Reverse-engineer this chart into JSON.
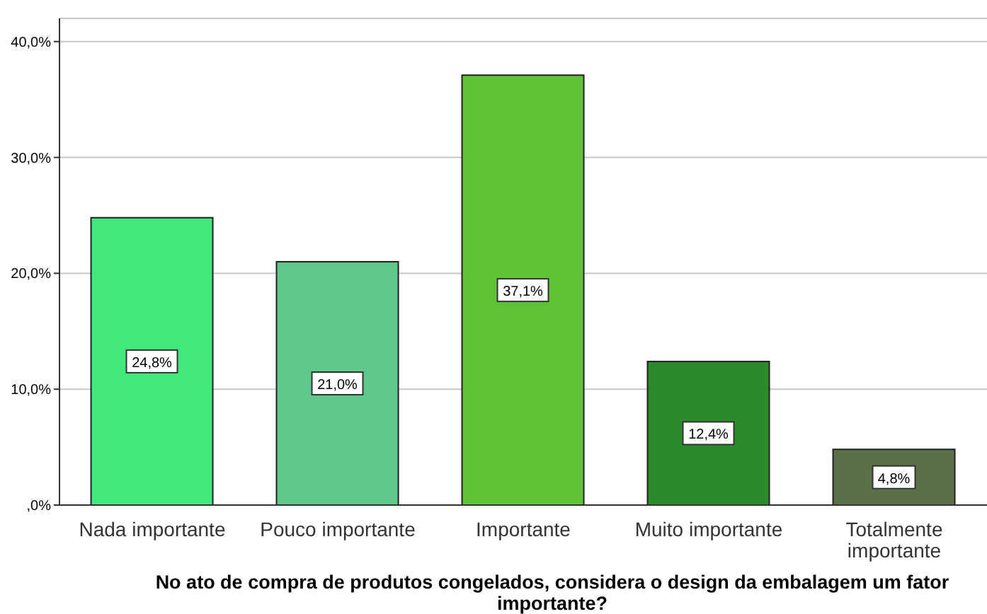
{
  "chart_data": {
    "type": "bar",
    "xlabel": "No ato de compra de produtos congelados, considera o design da embalagem um fator importante?",
    "categories": [
      "Nada importante",
      "Pouco importante",
      "Importante",
      "Muito importante",
      "Totalmente importante"
    ],
    "values": [
      24.8,
      21.0,
      37.1,
      12.4,
      4.8
    ],
    "colors": [
      "#42e87c",
      "#5ec98a",
      "#5fc338",
      "#2a8a2c",
      "#5b7049"
    ],
    "value_labels": [
      "24,8%",
      "21,0%",
      "37,1%",
      "12,4%",
      "4,8%"
    ],
    "ylim": [
      0,
      42
    ],
    "yticks": [
      {
        "value": 0,
        "label": ",0%"
      },
      {
        "value": 10,
        "label": "10,0%"
      },
      {
        "value": 20,
        "label": "20,0%"
      },
      {
        "value": 30,
        "label": "30,0%"
      },
      {
        "value": 40,
        "label": "40,0%"
      }
    ],
    "grid": "y"
  }
}
